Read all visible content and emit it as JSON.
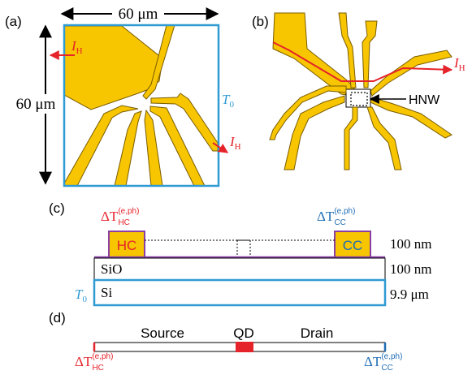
{
  "colors": {
    "gold": "#f7c600",
    "gold_stroke": "#7a5c00",
    "blue": "#2f9ad3",
    "red": "#e5232a",
    "purple": "#8a3fa3",
    "sc_blue": "#1e6cb5",
    "black": "#000000"
  },
  "panel_a": {
    "label": "(a)",
    "width_label": "60 μm",
    "height_label": "60 μm",
    "heat_current": "I",
    "heat_current_sub": "H",
    "bath_temp": "T",
    "bath_temp_sub": "0"
  },
  "panel_b": {
    "label": "(b)",
    "heat_current": "I",
    "heat_current_sub": "H",
    "nanowire_label": "HNW"
  },
  "panel_c": {
    "label": "(c)",
    "hot_contact": "HC",
    "cold_contact": "CC",
    "delta_hot": "ΔT",
    "delta_hot_sup": "(e,ph)",
    "delta_hot_sub": "HC",
    "delta_cold": "ΔT",
    "delta_cold_sup": "(e,ph)",
    "delta_cold_sub": "CC",
    "layers": [
      {
        "name": "",
        "thickness": "100 nm"
      },
      {
        "name": "SiO",
        "thickness": "100 nm"
      },
      {
        "name": "Si",
        "thickness": "9.9 μm"
      }
    ],
    "bath_temp": "T",
    "bath_temp_sub": "0"
  },
  "panel_d": {
    "label": "(d)",
    "source": "Source",
    "qd": "QD",
    "drain": "Drain",
    "delta_hot": "ΔT",
    "delta_hot_sup": "(e,ph)",
    "delta_hot_sub": "HC",
    "delta_cold": "ΔT",
    "delta_cold_sup": "(e,ph)",
    "delta_cold_sub": "CC"
  }
}
